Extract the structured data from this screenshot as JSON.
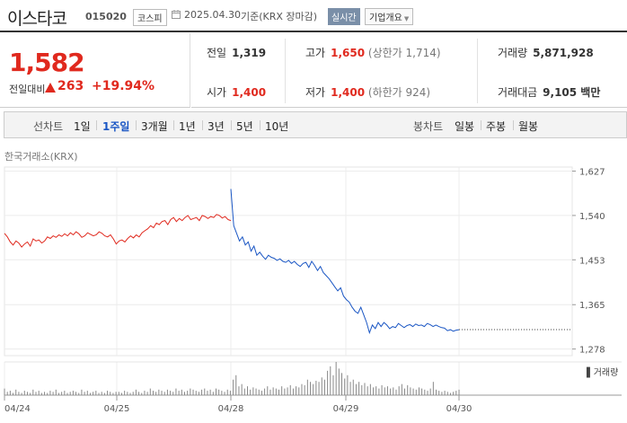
{
  "header": {
    "name": "이스타코",
    "code": "015020",
    "market": "코스피",
    "date": "2025.04.30",
    "basis": "기준(KRX 장마감)",
    "realtime": "실시간",
    "overview": "기업개요"
  },
  "price": {
    "current": "1,582",
    "change_label": "전일대비",
    "change": "263",
    "change_pct": "+19.94%",
    "direction": "up"
  },
  "stats": {
    "prev_close_label": "전일",
    "prev_close": "1,319",
    "high_label": "고가",
    "high": "1,650",
    "upper_limit": "(상한가 1,714)",
    "volume_label": "거래량",
    "volume": "5,871,928",
    "open_label": "시가",
    "open": "1,400",
    "low_label": "저가",
    "low": "1,400",
    "lower_limit": "(하한가 924)",
    "amount_label": "거래대금",
    "amount": "9,105 백만"
  },
  "tabs": {
    "line_label": "선차트",
    "line": [
      "1일",
      "1주일",
      "3개월",
      "1년",
      "3년",
      "5년",
      "10년"
    ],
    "line_active": "1주일",
    "candle_label": "봉차트",
    "candle": [
      "일봉",
      "주봉",
      "월봉"
    ]
  },
  "chart_source": "한국거래소(KRX)",
  "volume_legend": "거래량",
  "colors": {
    "up": "#e0291e",
    "down": "#1a56c4",
    "accent": "#7a8fa8"
  },
  "icons": {
    "date": "calendar-icon",
    "overview": "chevron-down-icon"
  },
  "chart_data": {
    "type": "line",
    "x_ticks": [
      "04/24",
      "04/25",
      "04/28",
      "04/29",
      "04/30"
    ],
    "y_ticks": [
      1627,
      1540,
      1453,
      1365,
      1278
    ],
    "ylim": [
      1265,
      1635
    ],
    "reference_line": 1319,
    "series": [
      {
        "segment": "04/24-04/25",
        "color": "up",
        "values": [
          1505,
          1498,
          1488,
          1482,
          1490,
          1486,
          1478,
          1484,
          1488,
          1480,
          1494,
          1490,
          1492,
          1486,
          1490,
          1498,
          1495,
          1500,
          1497,
          1502,
          1499,
          1504,
          1500,
          1506,
          1502,
          1508,
          1504,
          1497,
          1500,
          1506,
          1503,
          1500,
          1502,
          1508,
          1505,
          1500,
          1498,
          1502,
          1494,
          1484,
          1490,
          1492,
          1488,
          1495,
          1500,
          1496,
          1502,
          1498,
          1506,
          1510,
          1514,
          1520,
          1516,
          1525,
          1522,
          1528,
          1530,
          1522,
          1532,
          1536,
          1528,
          1534,
          1530,
          1536,
          1540,
          1532,
          1534,
          1536,
          1530,
          1540,
          1538,
          1534,
          1538,
          1536,
          1542,
          1540,
          1535,
          1538,
          1532,
          1530
        ]
      },
      {
        "segment": "04/28-04/29",
        "color": "down",
        "values": [
          1592,
          1520,
          1505,
          1490,
          1498,
          1482,
          1488,
          1470,
          1480,
          1462,
          1468,
          1460,
          1454,
          1462,
          1458,
          1456,
          1452,
          1455,
          1450,
          1448,
          1452,
          1446,
          1450,
          1444,
          1440,
          1446,
          1448,
          1438,
          1450,
          1442,
          1432,
          1440,
          1428,
          1422,
          1416,
          1408,
          1400,
          1392,
          1398,
          1382,
          1375,
          1370,
          1360,
          1352,
          1348,
          1360,
          1345,
          1330,
          1310,
          1325,
          1318,
          1330,
          1322,
          1330,
          1325,
          1318,
          1322,
          1320,
          1328,
          1324,
          1320,
          1324,
          1326,
          1322,
          1327,
          1324,
          1325,
          1322,
          1328,
          1326,
          1322,
          1325,
          1322,
          1320,
          1319,
          1314,
          1316,
          1313,
          1315,
          1316
        ]
      }
    ],
    "volume": [
      6,
      3,
      4,
      2,
      5,
      3,
      2,
      4,
      3,
      2,
      5,
      3,
      4,
      2,
      3,
      2,
      4,
      3,
      5,
      2,
      3,
      4,
      2,
      3,
      4,
      3,
      2,
      5,
      3,
      4,
      2,
      3,
      4,
      2,
      3,
      2,
      4,
      3,
      2,
      3,
      3,
      2,
      4,
      3,
      2,
      3,
      5,
      3,
      2,
      4,
      3,
      6,
      4,
      3,
      5,
      4,
      3,
      5,
      4,
      3,
      6,
      4,
      5,
      3,
      4,
      6,
      5,
      4,
      3,
      5,
      6,
      4,
      5,
      3,
      6,
      5,
      4,
      3,
      5,
      4,
      14,
      18,
      8,
      10,
      6,
      8,
      5,
      7,
      6,
      5,
      4,
      6,
      8,
      5,
      7,
      6,
      5,
      8,
      6,
      7,
      9,
      6,
      8,
      7,
      10,
      9,
      14,
      12,
      10,
      13,
      12,
      16,
      14,
      22,
      26,
      18,
      30,
      24,
      20,
      15,
      18,
      12,
      14,
      10,
      12,
      9,
      11,
      8,
      10,
      7,
      8,
      6,
      9,
      7,
      8,
      6,
      7,
      5,
      8,
      10,
      6,
      9,
      7,
      6,
      5,
      7,
      6,
      5,
      4,
      6,
      12,
      5,
      4,
      3,
      4,
      3,
      2,
      3,
      4,
      5
    ]
  }
}
